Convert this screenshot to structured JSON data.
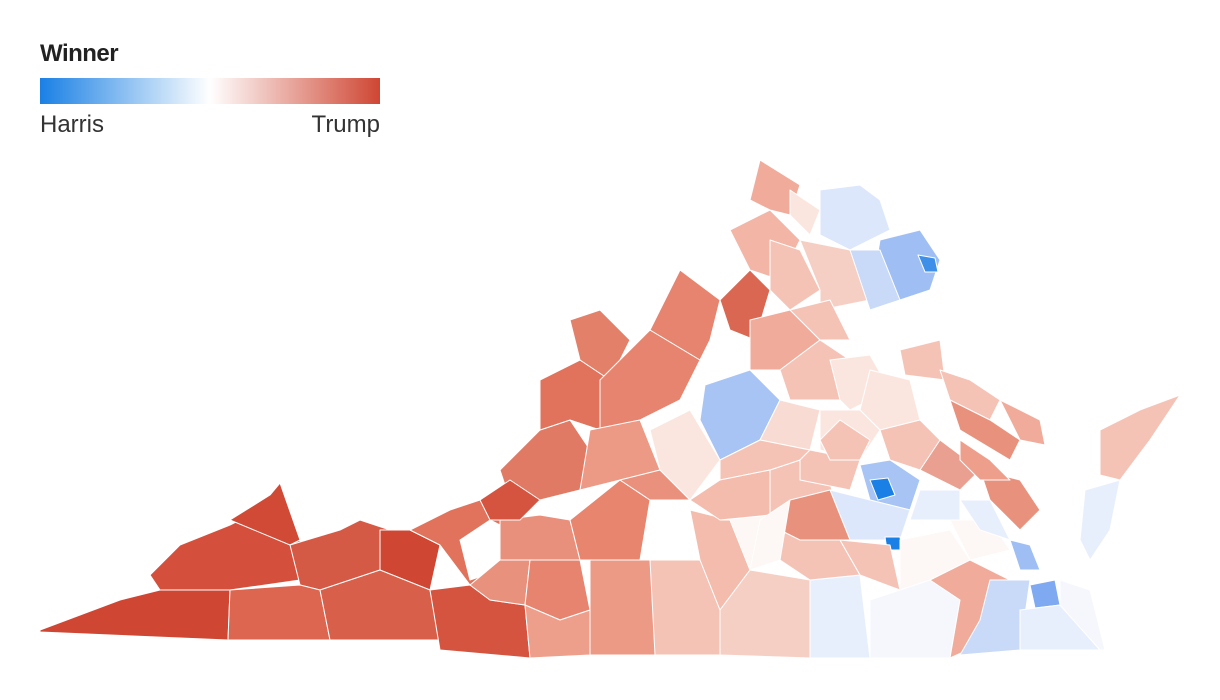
{
  "legend": {
    "title": "Winner",
    "left_label": "Harris",
    "right_label": "Trump",
    "gradient": [
      "#1a80e5",
      "#ffffff",
      "#cf4633"
    ]
  },
  "colors": {
    "trump_strong": "#cf4633",
    "trump_mid": "#e8927e",
    "trump_light": "#f4c3b6",
    "trump_faint": "#fbe6df",
    "toss": "#fdf7f5",
    "harris_faint": "#e8effc",
    "harris_light": "#c9daf8",
    "harris_mid": "#9fbff4",
    "harris_strong": "#1a80e5"
  }
}
